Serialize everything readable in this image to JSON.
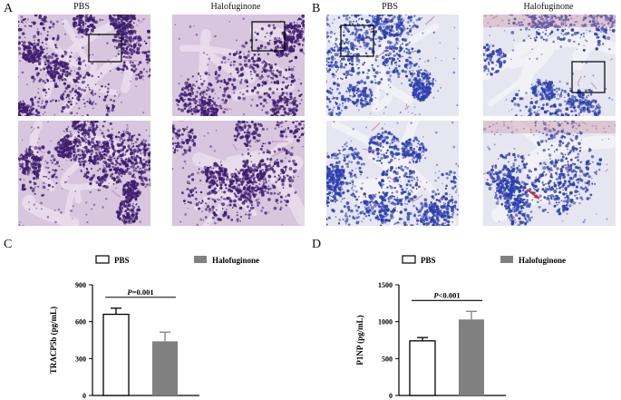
{
  "panels": {
    "A": {
      "letter": "A",
      "col1": "PBS",
      "col2": "Halofuginone"
    },
    "B": {
      "letter": "B",
      "col1": "PBS",
      "col2": "Halofuginone"
    },
    "C": {
      "letter": "C"
    },
    "D": {
      "letter": "D"
    }
  },
  "colors": {
    "he_bg": "#d7c6de",
    "he_cell": "#3f1d6e",
    "he_pink": "#c98bb3",
    "trap_bg": "#e6e6f1",
    "trap_cell": "#2d3fae",
    "trap_pink": "#c78a9b",
    "bar_gray": "#808080"
  },
  "chart_data": [
    {
      "type": "bar",
      "ylabel": "TRACP5b (pg/mL)",
      "categories": [
        "PBS",
        "Halofuginone"
      ],
      "legend": [
        "PBS",
        "Halofuginone"
      ],
      "values": [
        660,
        440
      ],
      "errors": [
        50,
        75
      ],
      "ylim": [
        0,
        900
      ],
      "yticks": [
        0,
        300,
        600,
        900
      ],
      "annotation": {
        "p": "P",
        "value": "=0.001"
      }
    },
    {
      "type": "bar",
      "ylabel": "P1NP (pg/mL)",
      "categories": [
        "PBS",
        "Halofuginone"
      ],
      "legend": [
        "PBS",
        "Halofuginone"
      ],
      "values": [
        740,
        1030
      ],
      "errors": [
        45,
        110
      ],
      "ylim": [
        0,
        1500
      ],
      "yticks": [
        0,
        500,
        1000,
        1500
      ],
      "annotation": {
        "p": "P",
        "value": "<0.001"
      }
    }
  ]
}
